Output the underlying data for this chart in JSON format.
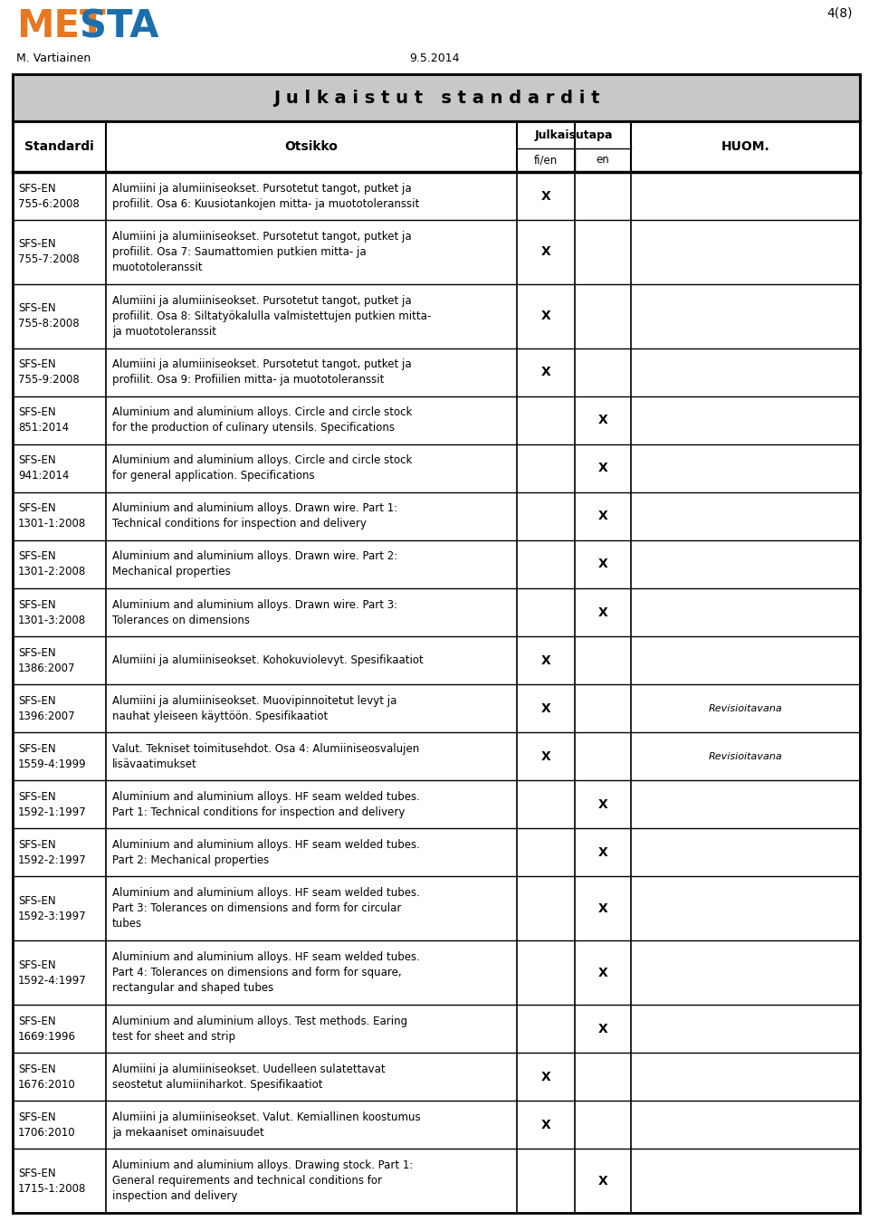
{
  "page_number": "4(8)",
  "author": "M. Vartiainen",
  "date": "9.5.2014",
  "title": "J u l k a i s t u t   s t a n d a r d i t",
  "rows": [
    {
      "standard": "SFS-EN\n755-6:2008",
      "otsikko": "Alumiini ja alumiiniseokset. Pursotetut tangot, putket ja\nprofiilit. Osa 6: Kuusiotankojen mitta- ja muototoleranssit",
      "fi_en": "X",
      "en": "",
      "huom": ""
    },
    {
      "standard": "SFS-EN\n755-7:2008",
      "otsikko": "Alumiini ja alumiiniseokset. Pursotetut tangot, putket ja\nprofiilit. Osa 7: Saumattomien putkien mitta- ja\nmuototoleranssit",
      "fi_en": "X",
      "en": "",
      "huom": ""
    },
    {
      "standard": "SFS-EN\n755-8:2008",
      "otsikko": "Alumiini ja alumiiniseokset. Pursotetut tangot, putket ja\nprofiilit. Osa 8: Siltatyökalulla valmistettujen putkien mitta-\nja muototoleranssit",
      "fi_en": "X",
      "en": "",
      "huom": ""
    },
    {
      "standard": "SFS-EN\n755-9:2008",
      "otsikko": "Alumiini ja alumiiniseokset. Pursotetut tangot, putket ja\nprofiilit. Osa 9: Profiilien mitta- ja muototoleranssit",
      "fi_en": "X",
      "en": "",
      "huom": ""
    },
    {
      "standard": "SFS-EN\n851:2014",
      "otsikko": "Aluminium and aluminium alloys. Circle and circle stock\nfor the production of culinary utensils. Specifications",
      "fi_en": "",
      "en": "X",
      "huom": ""
    },
    {
      "standard": "SFS-EN\n941:2014",
      "otsikko": "Aluminium and aluminium alloys. Circle and circle stock\nfor general application. Specifications",
      "fi_en": "",
      "en": "X",
      "huom": ""
    },
    {
      "standard": "SFS-EN\n1301-1:2008",
      "otsikko": "Aluminium and aluminium alloys. Drawn wire. Part 1:\nTechnical conditions for inspection and delivery",
      "fi_en": "",
      "en": "X",
      "huom": ""
    },
    {
      "standard": "SFS-EN\n1301-2:2008",
      "otsikko": "Aluminium and aluminium alloys. Drawn wire. Part 2:\nMechanical properties",
      "fi_en": "",
      "en": "X",
      "huom": ""
    },
    {
      "standard": "SFS-EN\n1301-3:2008",
      "otsikko": "Aluminium and aluminium alloys. Drawn wire. Part 3:\nTolerances on dimensions",
      "fi_en": "",
      "en": "X",
      "huom": ""
    },
    {
      "standard": "SFS-EN\n1386:2007",
      "otsikko": "Alumiini ja alumiiniseokset. Kohokuviolevyt. Spesifikaatiot",
      "fi_en": "X",
      "en": "",
      "huom": ""
    },
    {
      "standard": "SFS-EN\n1396:2007",
      "otsikko": "Alumiini ja alumiiniseokset. Muovipinnoitetut levyt ja\nnauhat yleiseen käyttöön. Spesifikaatiot",
      "fi_en": "X",
      "en": "",
      "huom": "Revisioitavana"
    },
    {
      "standard": "SFS-EN\n1559-4:1999",
      "otsikko": "Valut. Tekniset toimitusehdot. Osa 4: Alumiiniseosvalujen\nlisävaatimukset",
      "fi_en": "X",
      "en": "",
      "huom": "Revisioitavana"
    },
    {
      "standard": "SFS-EN\n1592-1:1997",
      "otsikko": "Aluminium and aluminium alloys. HF seam welded tubes.\nPart 1: Technical conditions for inspection and delivery",
      "fi_en": "",
      "en": "X",
      "huom": ""
    },
    {
      "standard": "SFS-EN\n1592-2:1997",
      "otsikko": "Aluminium and aluminium alloys. HF seam welded tubes.\nPart 2: Mechanical properties",
      "fi_en": "",
      "en": "X",
      "huom": ""
    },
    {
      "standard": "SFS-EN\n1592-3:1997",
      "otsikko": "Aluminium and aluminium alloys. HF seam welded tubes.\nPart 3: Tolerances on dimensions and form for circular\ntubes",
      "fi_en": "",
      "en": "X",
      "huom": ""
    },
    {
      "standard": "SFS-EN\n1592-4:1997",
      "otsikko": "Aluminium and aluminium alloys. HF seam welded tubes.\nPart 4: Tolerances on dimensions and form for square,\nrectangular and shaped tubes",
      "fi_en": "",
      "en": "X",
      "huom": ""
    },
    {
      "standard": "SFS-EN\n1669:1996",
      "otsikko": "Aluminium and aluminium alloys. Test methods. Earing\ntest for sheet and strip",
      "fi_en": "",
      "en": "X",
      "huom": ""
    },
    {
      "standard": "SFS-EN\n1676:2010",
      "otsikko": "Alumiini ja alumiiniseokset. Uudelleen sulatettavat\nseostetut alumiiniharkot. Spesifikaatiot",
      "fi_en": "X",
      "en": "",
      "huom": ""
    },
    {
      "standard": "SFS-EN\n1706:2010",
      "otsikko": "Alumiini ja alumiiniseokset. Valut. Kemiallinen koostumus\nja mekaaniset ominaisuudet",
      "fi_en": "X",
      "en": "",
      "huom": ""
    },
    {
      "standard": "SFS-EN\n1715-1:2008",
      "otsikko": "Aluminium and aluminium alloys. Drawing stock. Part 1:\nGeneral requirements and technical conditions for\ninspection and delivery",
      "fi_en": "",
      "en": "X",
      "huom": ""
    }
  ],
  "metsta_met_color": "#e87722",
  "metsta_sta_color": "#1b6fad",
  "title_bg": "#c8c8c8",
  "header_bg": "#ffffff",
  "border_color": "#000000"
}
